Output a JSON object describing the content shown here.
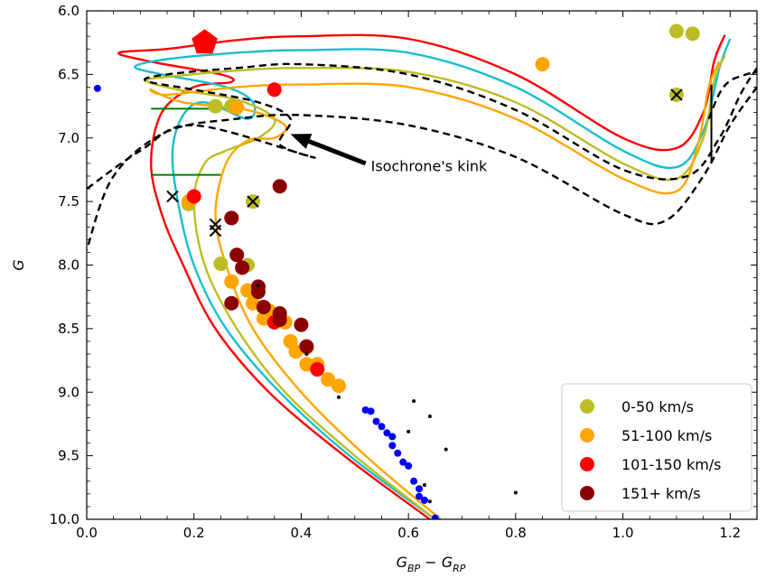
{
  "chart_data": {
    "type": "scatter",
    "xlabel_main": "G",
    "xlabel_sub1": "BP",
    "xlabel_mid": " − G",
    "xlabel_sub2": "RP",
    "ylabel": "G",
    "xlim": [
      0.0,
      1.25
    ],
    "ylim": [
      10.0,
      6.0
    ],
    "y_inverted": true,
    "x_ticks": [
      0.0,
      0.2,
      0.4,
      0.6,
      0.8,
      1.0,
      1.2
    ],
    "x_tick_labels": [
      "0.0",
      "0.2",
      "0.4",
      "0.6",
      "0.8",
      "1.0",
      "1.2"
    ],
    "y_ticks": [
      6.0,
      6.5,
      7.0,
      7.5,
      8.0,
      8.5,
      9.0,
      9.5,
      10.0
    ],
    "y_tick_labels": [
      "6.0",
      "6.5",
      "7.0",
      "7.5",
      "8.0",
      "8.5",
      "9.0",
      "9.5",
      "10.0"
    ],
    "annotation": {
      "text": "Isochrone's kink",
      "arrow_from": [
        0.52,
        7.2
      ],
      "arrow_to": [
        0.38,
        6.97
      ]
    },
    "legend": {
      "position": "lower-right",
      "entries": [
        {
          "label": "0-50 km/s",
          "color": "#bcbd22"
        },
        {
          "label": "51-100 km/s",
          "color": "#ffa500"
        },
        {
          "label": "101-150 km/s",
          "color": "#ff0000"
        },
        {
          "label": "151+ km/s",
          "color": "#8b0000"
        }
      ]
    },
    "series": [
      {
        "name": "0-50 km/s",
        "color": "#bcbd22",
        "size": 8,
        "points": [
          [
            1.1,
            6.16
          ],
          [
            1.13,
            6.18
          ],
          [
            0.19,
            7.52
          ],
          [
            0.25,
            7.99
          ],
          [
            0.3,
            8.0
          ],
          [
            0.24,
            6.75
          ],
          [
            0.27,
            6.75
          ],
          [
            0.31,
            7.5
          ],
          [
            1.1,
            6.66
          ]
        ]
      },
      {
        "name": "51-100 km/s",
        "color": "#ffa500",
        "size": 8,
        "points": [
          [
            0.85,
            6.42
          ],
          [
            0.19,
            7.5
          ],
          [
            0.28,
            6.76
          ],
          [
            0.27,
            8.13
          ],
          [
            0.3,
            8.2
          ],
          [
            0.31,
            8.3
          ],
          [
            0.33,
            8.42
          ],
          [
            0.37,
            8.45
          ],
          [
            0.38,
            8.6
          ],
          [
            0.39,
            8.68
          ],
          [
            0.41,
            8.65
          ],
          [
            0.43,
            8.78
          ],
          [
            0.45,
            8.9
          ],
          [
            0.47,
            8.95
          ],
          [
            0.34,
            8.36
          ],
          [
            0.41,
            8.78
          ]
        ]
      },
      {
        "name": "101-150 km/s",
        "color": "#ff0000",
        "size": 8,
        "points": [
          [
            0.35,
            6.62
          ],
          [
            0.2,
            7.46
          ],
          [
            0.35,
            8.45
          ],
          [
            0.43,
            8.82
          ]
        ]
      },
      {
        "name": "151+ km/s",
        "color": "#8b0000",
        "size": 8,
        "points": [
          [
            0.36,
            7.38
          ],
          [
            0.27,
            7.63
          ],
          [
            0.28,
            7.92
          ],
          [
            0.29,
            8.02
          ],
          [
            0.32,
            8.17
          ],
          [
            0.32,
            8.21
          ],
          [
            0.33,
            8.33
          ],
          [
            0.36,
            8.38
          ],
          [
            0.36,
            8.43
          ],
          [
            0.4,
            8.47
          ],
          [
            0.41,
            8.64
          ],
          [
            0.27,
            8.3
          ]
        ]
      },
      {
        "name": "",
        "color": "#0000ff",
        "size": 4,
        "points": [
          [
            0.02,
            6.61
          ],
          [
            0.52,
            9.14
          ],
          [
            0.53,
            9.15
          ],
          [
            0.54,
            9.23
          ],
          [
            0.55,
            9.27
          ],
          [
            0.56,
            9.32
          ],
          [
            0.57,
            9.35
          ],
          [
            0.57,
            9.42
          ],
          [
            0.58,
            9.48
          ],
          [
            0.59,
            9.55
          ],
          [
            0.6,
            9.58
          ],
          [
            0.61,
            9.7
          ],
          [
            0.62,
            9.76
          ],
          [
            0.62,
            9.82
          ],
          [
            0.65,
            9.99
          ],
          [
            0.63,
            9.85
          ]
        ]
      },
      {
        "name": "",
        "color": "#000000",
        "size": 2,
        "points": [
          [
            0.61,
            9.07
          ],
          [
            0.64,
            9.19
          ],
          [
            0.6,
            9.31
          ],
          [
            0.67,
            9.45
          ],
          [
            0.63,
            9.73
          ],
          [
            0.8,
            9.79
          ],
          [
            0.64,
            9.86
          ],
          [
            0.32,
            8.16
          ],
          [
            0.41,
            8.7
          ],
          [
            0.47,
            9.04
          ]
        ]
      }
    ],
    "crossed_markers": [
      [
        0.16,
        7.46
      ],
      [
        0.24,
        7.68
      ],
      [
        0.24,
        7.73
      ],
      [
        0.31,
        7.5
      ],
      [
        1.1,
        6.66
      ]
    ],
    "pentagon": {
      "x": 0.22,
      "y": 6.25,
      "color": "#ff0000"
    },
    "curves": [
      {
        "color": "#ff0000",
        "style": "solid",
        "points": [
          [
            1.19,
            6.19
          ],
          [
            1.17,
            6.4
          ],
          [
            1.15,
            6.8
          ],
          [
            1.1,
            7.08
          ],
          [
            1.0,
            7.0
          ],
          [
            0.8,
            6.5
          ],
          [
            0.6,
            6.22
          ],
          [
            0.4,
            6.2
          ],
          [
            0.28,
            6.23
          ],
          [
            0.15,
            6.3
          ],
          [
            0.06,
            6.33
          ],
          [
            0.12,
            6.4
          ],
          [
            0.25,
            6.5
          ],
          [
            0.27,
            6.56
          ],
          [
            0.2,
            6.6
          ],
          [
            0.14,
            6.8
          ],
          [
            0.12,
            7.2
          ],
          [
            0.14,
            7.6
          ],
          [
            0.18,
            8.0
          ],
          [
            0.24,
            8.5
          ],
          [
            0.34,
            9.0
          ],
          [
            0.48,
            9.5
          ],
          [
            0.64,
            10.0
          ]
        ]
      },
      {
        "color": "#17becf",
        "style": "solid",
        "points": [
          [
            1.2,
            6.22
          ],
          [
            1.18,
            6.45
          ],
          [
            1.15,
            6.95
          ],
          [
            1.1,
            7.23
          ],
          [
            1.0,
            7.1
          ],
          [
            0.8,
            6.6
          ],
          [
            0.6,
            6.33
          ],
          [
            0.4,
            6.31
          ],
          [
            0.28,
            6.33
          ],
          [
            0.15,
            6.38
          ],
          [
            0.09,
            6.44
          ],
          [
            0.14,
            6.5
          ],
          [
            0.26,
            6.6
          ],
          [
            0.31,
            6.72
          ],
          [
            0.3,
            6.85
          ],
          [
            0.22,
            6.72
          ],
          [
            0.18,
            6.82
          ],
          [
            0.16,
            7.1
          ],
          [
            0.17,
            7.5
          ],
          [
            0.2,
            8.0
          ],
          [
            0.26,
            8.5
          ],
          [
            0.36,
            9.0
          ],
          [
            0.49,
            9.5
          ],
          [
            0.65,
            10.0
          ]
        ]
      },
      {
        "color": "#bcbd22",
        "style": "solid",
        "points": [
          [
            1.19,
            6.35
          ],
          [
            1.17,
            6.55
          ],
          [
            1.15,
            7.0
          ],
          [
            1.1,
            7.32
          ],
          [
            1.0,
            7.2
          ],
          [
            0.8,
            6.72
          ],
          [
            0.6,
            6.48
          ],
          [
            0.4,
            6.45
          ],
          [
            0.28,
            6.47
          ],
          [
            0.15,
            6.52
          ],
          [
            0.11,
            6.55
          ],
          [
            0.17,
            6.62
          ],
          [
            0.28,
            6.7
          ],
          [
            0.35,
            6.85
          ],
          [
            0.32,
            7.0
          ],
          [
            0.26,
            7.1
          ],
          [
            0.22,
            7.2
          ],
          [
            0.2,
            7.5
          ],
          [
            0.22,
            8.0
          ],
          [
            0.28,
            8.5
          ],
          [
            0.37,
            9.0
          ],
          [
            0.5,
            9.5
          ],
          [
            0.65,
            10.0
          ]
        ]
      },
      {
        "color": "#ffa500",
        "style": "solid",
        "points": [
          [
            1.18,
            6.4
          ],
          [
            1.16,
            6.6
          ],
          [
            1.14,
            7.05
          ],
          [
            1.1,
            7.42
          ],
          [
            1.0,
            7.32
          ],
          [
            0.8,
            6.85
          ],
          [
            0.6,
            6.6
          ],
          [
            0.4,
            6.58
          ],
          [
            0.28,
            6.6
          ],
          [
            0.15,
            6.66
          ],
          [
            0.12,
            6.62
          ],
          [
            0.18,
            6.72
          ],
          [
            0.3,
            6.78
          ],
          [
            0.37,
            6.9
          ],
          [
            0.35,
            7.0
          ],
          [
            0.3,
            7.02
          ],
          [
            0.26,
            7.2
          ],
          [
            0.24,
            7.6
          ],
          [
            0.26,
            8.0
          ],
          [
            0.31,
            8.5
          ],
          [
            0.4,
            9.0
          ],
          [
            0.52,
            9.5
          ],
          [
            0.66,
            10.0
          ]
        ]
      },
      {
        "color": "#000000",
        "style": "dashed",
        "points": [
          [
            1.25,
            6.45
          ],
          [
            1.22,
            6.65
          ],
          [
            1.18,
            7.0
          ],
          [
            1.12,
            7.3
          ],
          [
            1.0,
            7.25
          ],
          [
            0.8,
            6.78
          ],
          [
            0.6,
            6.5
          ],
          [
            0.4,
            6.42
          ],
          [
            0.28,
            6.45
          ],
          [
            0.15,
            6.5
          ],
          [
            0.11,
            6.55
          ],
          [
            0.2,
            6.62
          ],
          [
            0.32,
            6.72
          ],
          [
            0.38,
            6.85
          ],
          [
            0.36,
            7.05
          ],
          [
            0.42,
            7.15
          ],
          [
            0.2,
            6.9
          ],
          [
            0.1,
            7.1
          ],
          [
            0.0,
            7.4
          ]
        ]
      },
      {
        "color": "#000000",
        "style": "dashed",
        "points": [
          [
            1.25,
            6.6
          ],
          [
            1.2,
            6.9
          ],
          [
            1.15,
            7.3
          ],
          [
            1.08,
            7.65
          ],
          [
            1.0,
            7.6
          ],
          [
            0.8,
            7.15
          ],
          [
            0.6,
            6.9
          ],
          [
            0.4,
            6.82
          ],
          [
            0.28,
            6.85
          ],
          [
            0.15,
            6.95
          ],
          [
            0.05,
            7.3
          ],
          [
            0.0,
            7.88
          ]
        ]
      },
      {
        "color": "#000000",
        "style": "dashed",
        "points": [
          [
            1.16,
            6.85
          ],
          [
            1.18,
            6.65
          ],
          [
            1.2,
            6.55
          ],
          [
            1.23,
            6.5
          ],
          [
            1.25,
            6.48
          ]
        ]
      }
    ],
    "segments": [
      {
        "color": "#008000",
        "points": [
          [
            0.12,
            6.77
          ],
          [
            0.25,
            6.77
          ]
        ]
      },
      {
        "color": "#008000",
        "points": [
          [
            0.12,
            7.29
          ],
          [
            0.25,
            7.29
          ]
        ]
      },
      {
        "color": "#000000",
        "points": [
          [
            1.165,
            6.58
          ],
          [
            1.165,
            7.2
          ]
        ]
      }
    ]
  }
}
